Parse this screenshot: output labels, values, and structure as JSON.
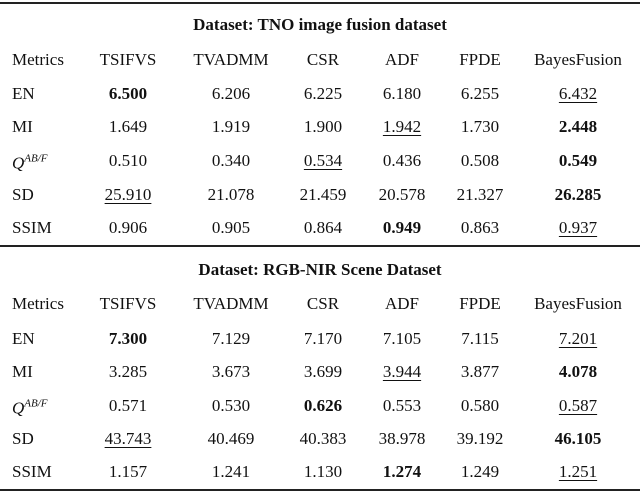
{
  "sections": [
    {
      "title": "Dataset:  TNO image fusion dataset",
      "header": [
        "Metrics",
        "TSIFVS",
        "TVADMM",
        "CSR",
        "ADF",
        "FPDE",
        "BayesFusion"
      ],
      "rows": [
        [
          "EN",
          "6.500",
          "6.206",
          "6.225",
          "6.180",
          "6.255",
          "6.432"
        ],
        [
          "MI",
          "1.649",
          "1.919",
          "1.900",
          "1.942",
          "1.730",
          "2.448"
        ],
        [
          [
            "Q",
            "AB/F"
          ],
          "0.510",
          "0.340",
          "0.534",
          "0.436",
          "0.508",
          "0.549"
        ],
        [
          "SD",
          "25.910",
          "21.078",
          "21.459",
          "20.578",
          "21.327",
          "26.285"
        ],
        [
          "SSIM",
          "0.906",
          "0.905",
          "0.864",
          "0.949",
          "0.863",
          "0.937"
        ]
      ]
    },
    {
      "title": "Dataset:  RGB-NIR Scene Dataset",
      "header": [
        "Metrics",
        "TSIFVS",
        "TVADMM",
        "CSR",
        "ADF",
        "FPDE",
        "BayesFusion"
      ],
      "rows": [
        [
          "EN",
          "7.300",
          "7.129",
          "7.170",
          "7.105",
          "7.115",
          "7.201"
        ],
        [
          "MI",
          "3.285",
          "3.673",
          "3.699",
          "3.944",
          "3.877",
          "4.078"
        ],
        [
          [
            "Q",
            "AB/F"
          ],
          "0.571",
          "0.530",
          "0.626",
          "0.553",
          "0.580",
          "0.587"
        ],
        [
          "SD",
          "43.743",
          "40.469",
          "40.383",
          "38.978",
          "39.192",
          "46.105"
        ],
        [
          "SSIM",
          "1.157",
          "1.241",
          "1.130",
          "1.274",
          "1.249",
          "1.251"
        ]
      ]
    }
  ]
}
